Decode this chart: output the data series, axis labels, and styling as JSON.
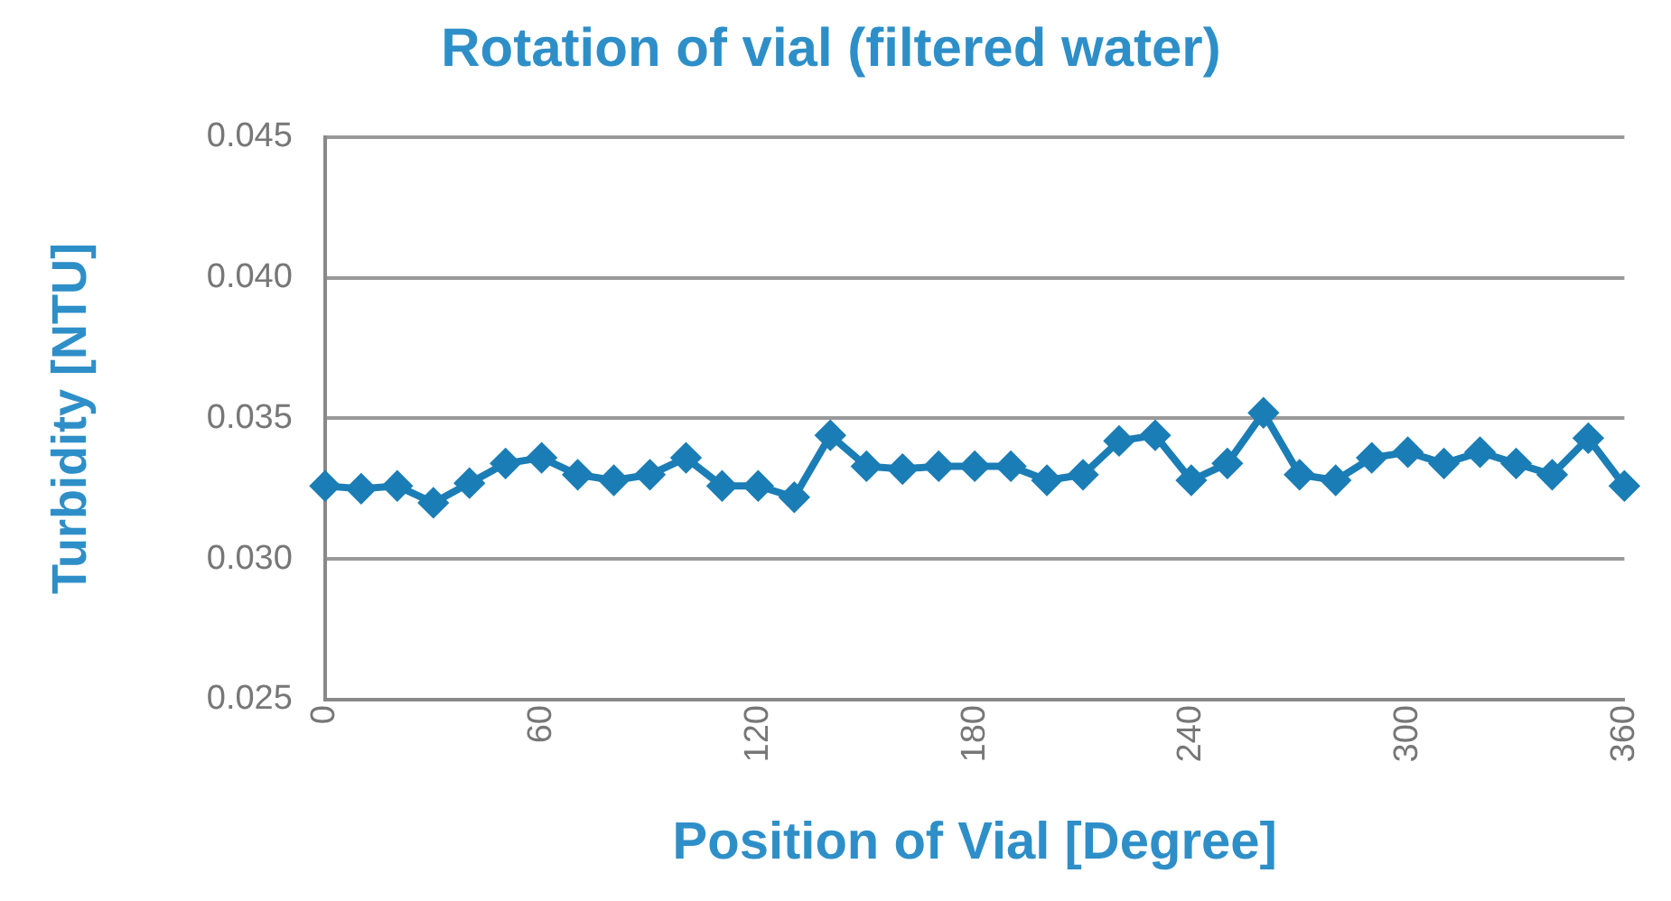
{
  "chart_data": {
    "type": "line",
    "title": "Rotation of vial (filtered water)",
    "xlabel": "Position of Vial [Degree]",
    "ylabel": "Turbidity [NTU]",
    "x": [
      0,
      10,
      20,
      30,
      40,
      50,
      60,
      70,
      80,
      90,
      100,
      110,
      120,
      130,
      140,
      150,
      160,
      170,
      180,
      190,
      200,
      210,
      220,
      230,
      240,
      250,
      260,
      270,
      280,
      290,
      300,
      310,
      320,
      330,
      340,
      350,
      360
    ],
    "series": [
      {
        "color": "#1b7db5",
        "values": [
          0.0326,
          0.0325,
          0.0326,
          0.032,
          0.0327,
          0.0334,
          0.0336,
          0.033,
          0.0328,
          0.033,
          0.0336,
          0.0326,
          0.0326,
          0.0322,
          0.0344,
          0.0333,
          0.0332,
          0.0333,
          0.0333,
          0.0333,
          0.0328,
          0.033,
          0.0342,
          0.0344,
          0.0328,
          0.0334,
          0.0352,
          0.033,
          0.0328,
          0.0336,
          0.0338,
          0.0334,
          0.0338,
          0.0334,
          0.033,
          0.0343,
          0.0326
        ]
      }
    ],
    "xlim": [
      0,
      360
    ],
    "xticks": [
      0,
      60,
      120,
      180,
      240,
      300,
      360
    ],
    "ylim": [
      0.025,
      0.045
    ],
    "yticks": [
      0.025,
      {
        "value": 0.03,
        "label": "0.030"
      },
      0.035,
      {
        "value": 0.04,
        "label": "0.040"
      },
      0.045
    ],
    "grid": "y",
    "legend": false,
    "marker": "diamond",
    "line_style": "solid"
  }
}
